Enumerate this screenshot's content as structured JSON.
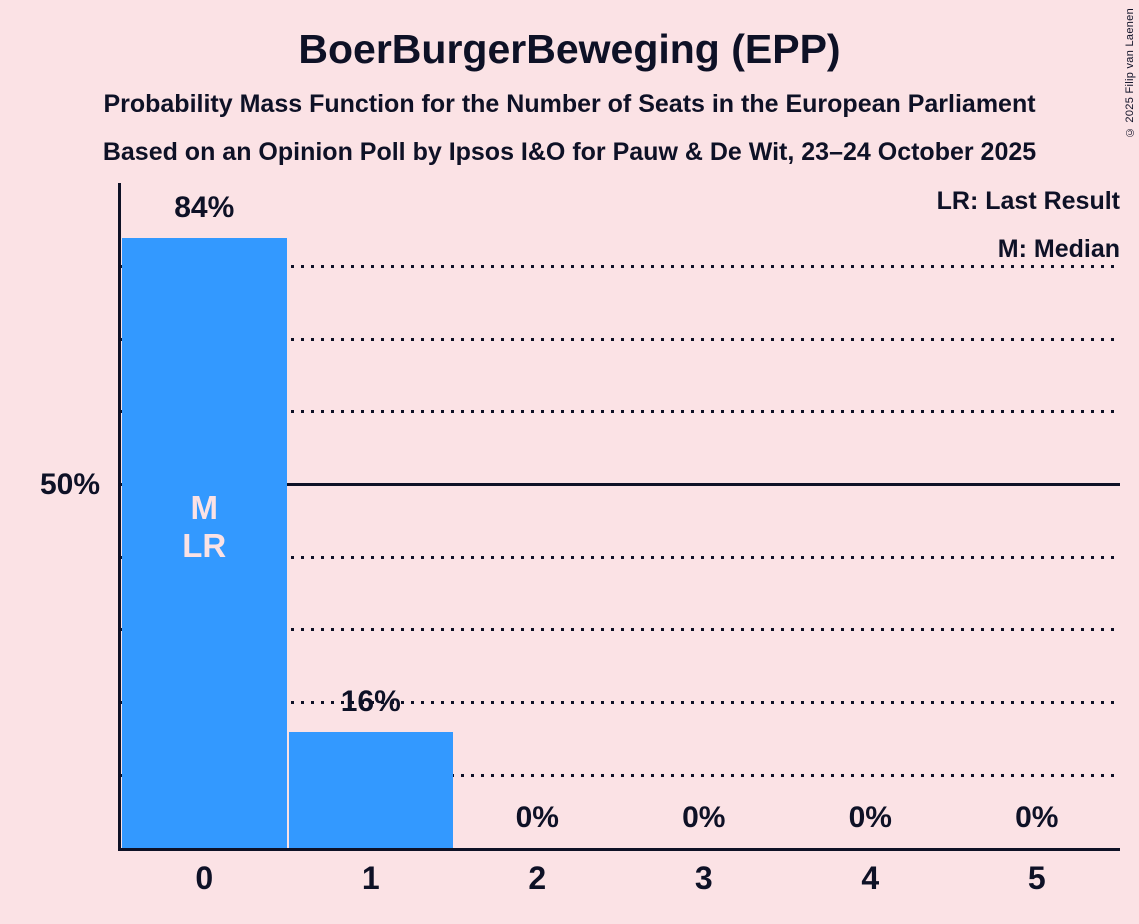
{
  "title": "BoerBurgerBeweging (EPP)",
  "subtitle1": "Probability Mass Function for the Number of Seats in the European Parliament",
  "subtitle2": "Based on an Opinion Poll by Ipsos I&O for Pauw & De Wit, 23–24 October 2025",
  "copyright": "© 2025 Filip van Laenen",
  "legend": {
    "lr": "LR: Last Result",
    "m": "M: Median"
  },
  "y_axis": {
    "label": "50%"
  },
  "colors": {
    "background": "#fbe2e5",
    "ink": "#0e1126",
    "bar": "#3399ff",
    "bar_label": "#fbe2e5"
  },
  "chart_data": {
    "type": "bar",
    "categories": [
      "0",
      "1",
      "2",
      "3",
      "4",
      "5"
    ],
    "values": [
      84,
      16,
      0,
      0,
      0,
      0
    ],
    "bar_labels": [
      "84%",
      "16%",
      "0%",
      "0%",
      "0%",
      "0%"
    ],
    "annotations": [
      {
        "category": "0",
        "lines": [
          "M",
          "LR"
        ]
      }
    ],
    "title": "BoerBurgerBeweging (EPP)",
    "xlabel": "Number of seats in the European Parliament",
    "ylabel": "Probability",
    "ylim": [
      0,
      91.5
    ],
    "grid": "horizontal-dotted",
    "gridlines_dotted_pct": [
      10,
      20,
      30,
      40,
      60,
      70,
      80
    ],
    "gridlines_solid_pct": [
      50
    ],
    "y_reference_label_pct": 50,
    "legend_position": "top-right"
  }
}
